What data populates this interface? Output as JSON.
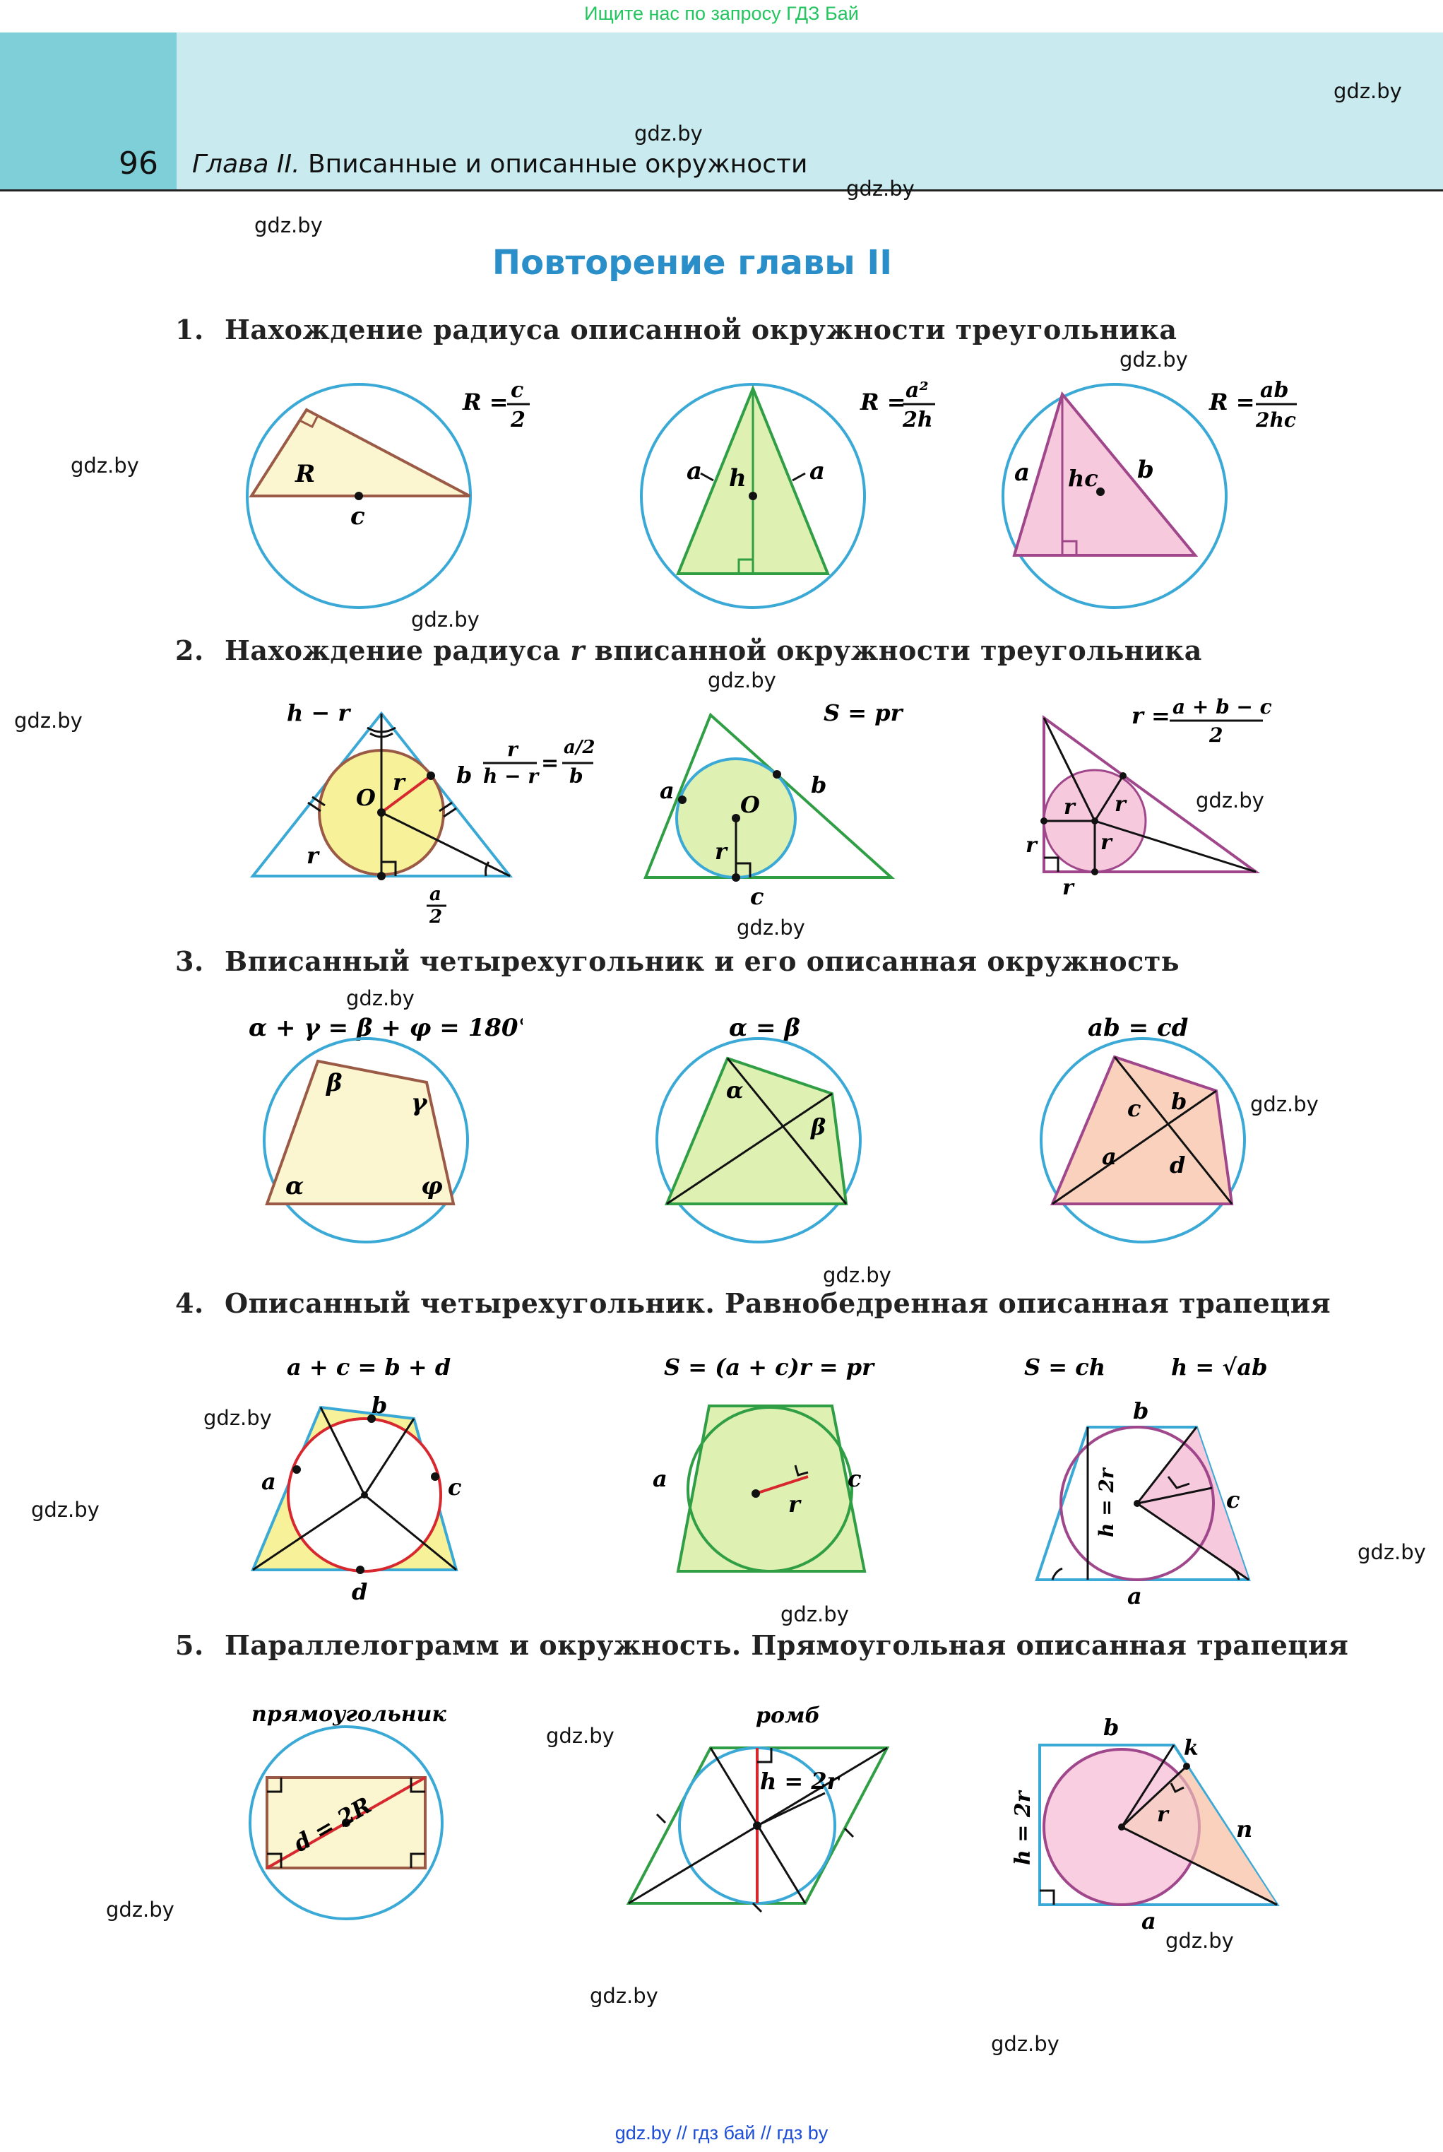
{
  "top_banner": "Ищите нас по запросу ГДЗ Бай",
  "header": {
    "page_number": "96",
    "chapter_label": "Глава II.",
    "chapter_title": "Вписанные и описанные окружности"
  },
  "watermark": "gdz.by",
  "section_title": "Повторение главы II",
  "sections": [
    {
      "num": "1.",
      "title": "Нахождение радиуса описанной окружности треугольника"
    },
    {
      "num": "2.",
      "title_pre": "Нахождение радиуса ",
      "title_var": "r",
      "title_post": " вписанной окружности треугольника"
    },
    {
      "num": "3.",
      "title": "Вписанный четырехугольник и его описанная окружность"
    },
    {
      "num": "4.",
      "title": "Описанный четырехугольник. Равнобедренная описанная трапеция"
    },
    {
      "num": "5.",
      "title": "Параллелограмм и окружность. Прямоугольная описанная трапеция"
    }
  ],
  "labels": {
    "s1": {
      "f1_formula_lhs": "R =",
      "f1_num": "c",
      "f1_den": "2",
      "f1_R": "R",
      "f1_c": "c",
      "f2_formula_lhs": "R =",
      "f2_num": "a²",
      "f2_den": "2h",
      "f2_a1": "a",
      "f2_h": "h",
      "f2_a2": "a",
      "f3_formula_lhs": "R =",
      "f3_num": "ab",
      "f3_den": "2hc",
      "f3_a": "a",
      "f3_hc": "hc",
      "f3_b": "b"
    },
    "s2": {
      "f1_hr": "h − r",
      "f1_O": "O",
      "f1_r1": "r",
      "f1_b": "b",
      "f1_r2": "r",
      "f1_half_num": "a",
      "f1_half_den": "2",
      "f1_eq_num": "r",
      "f1_eq_den": "h − r",
      "f1_eq_eq": "=",
      "f1_eq_rnum": "a/2",
      "f1_eq_rden": "b",
      "f2_formula": "S = pr",
      "f2_a": "a",
      "f2_O": "O",
      "f2_b": "b",
      "f2_r": "r",
      "f2_c": "c",
      "f3_formula_lhs": "r =",
      "f3_num": "a + b − c",
      "f3_den": "2",
      "f3_r": "r"
    },
    "s3": {
      "f1_formula": "α + γ = β + φ = 180°",
      "f1_alpha": "α",
      "f1_beta": "β",
      "f1_gamma": "γ",
      "f1_phi": "φ",
      "f2_formula": "α = β",
      "f2_alpha": "α",
      "f2_beta": "β",
      "f3_formula": "ab = cd",
      "f3_a": "a",
      "f3_b": "b",
      "f3_c": "c",
      "f3_d": "d"
    },
    "s4": {
      "f1_formula": "a + c = b + d",
      "f1_a": "a",
      "f1_b": "b",
      "f1_c": "c",
      "f1_d": "d",
      "f2_formula": "S = (a + c)r = pr",
      "f2_a": "a",
      "f2_c": "c",
      "f2_r": "r",
      "f3_formula1": "S = ch",
      "f3_formula2": "h = √ab",
      "f3_b": "b",
      "f3_h": "h = 2r",
      "f3_c": "c",
      "f3_a": "a"
    },
    "s5": {
      "f1_caption": "прямоугольник",
      "f1_d": "d = 2R",
      "f2_caption": "ромб",
      "f2_h": "h = 2r",
      "f3_b": "b",
      "f3_k": "k",
      "f3_r": "r",
      "f3_n": "n",
      "f3_h": "h = 2r",
      "f3_a": "a"
    }
  },
  "footer": "gdz.by  //  гдз бай  //  гдз by",
  "colors": {
    "circle": "#3aa9d6",
    "green": "#2f9e44",
    "brown": "#9b5a45",
    "magenta": "#a0478c",
    "red": "#d8282f",
    "yellow_fill": "#fbf6cf",
    "green_fill": "#dff0b3",
    "pink_fill": "#f7c9dd",
    "peach_fill": "#f9d1bd",
    "incircle_fill": "#f7f29a",
    "header_dark": "#7fcfd8",
    "header_light": "#c9ebef",
    "title_blue": "#2a8ec9"
  }
}
